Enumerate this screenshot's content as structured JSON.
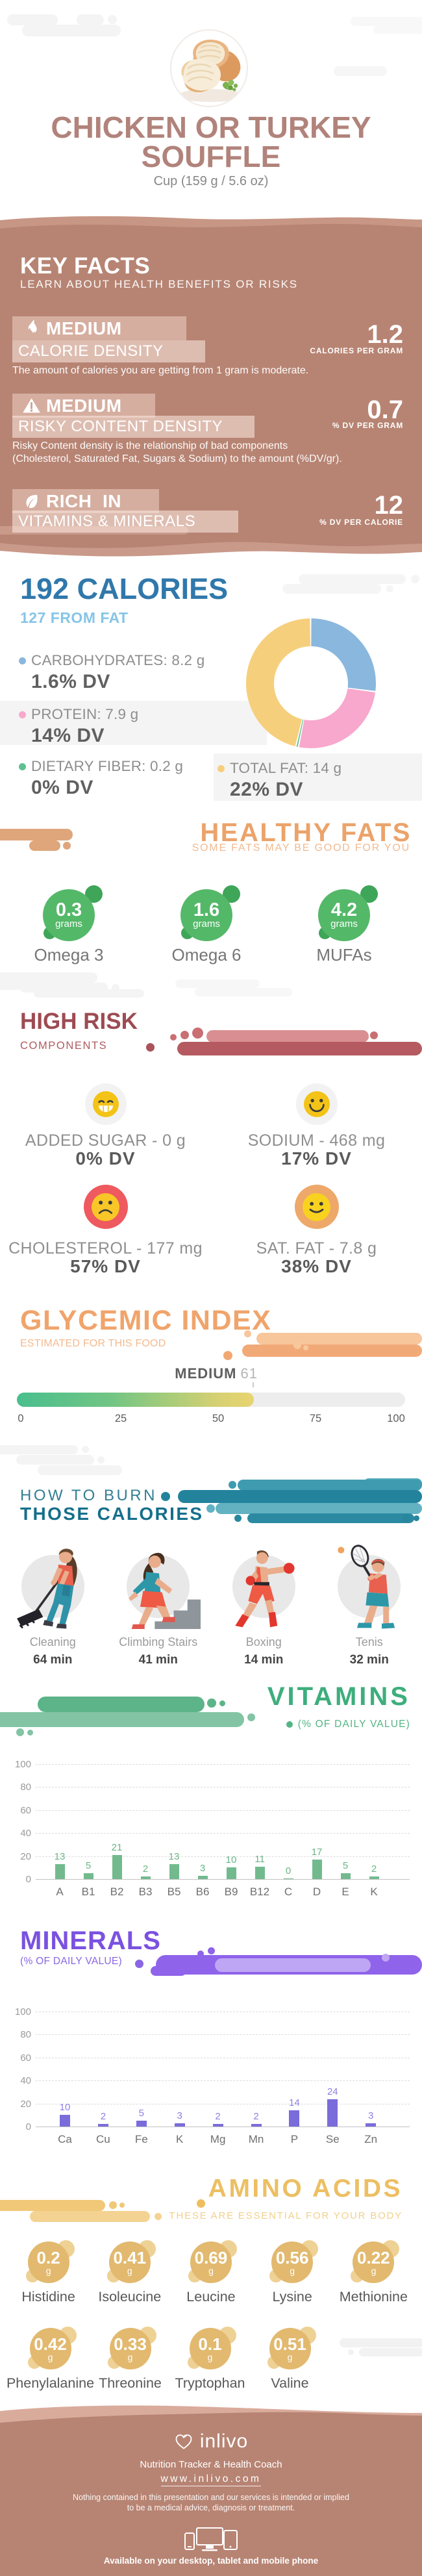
{
  "colors": {
    "rose": "#b78473",
    "rose-light": "#c79684",
    "rose-light-footer": "#d9ab9b",
    "title-color": "#b1837b",
    "blue": "#3078ab",
    "blue-light": "#85c5e8",
    "green-badge": "#54b869",
    "green-badge-sat": "#3fa558",
    "orange": "#eba36a",
    "red-dark": "#9d4b52",
    "red-pill": "#bf6066",
    "teal": "#156f8b",
    "vitamins-green": "#3dae7c",
    "minerals-purple": "#7a52e0",
    "amino-gold": "#ecbf63",
    "cloud-gray": "#f4f4f4"
  },
  "header": {
    "title_line1": "CHICKEN OR TURKEY",
    "title_line2": "SOUFFLE",
    "serving": "Cup (159 g / 5.6 oz)",
    "photo_alt": "chicken-or-turkey-souffle-photo"
  },
  "key_facts": {
    "title": "KEY FACTS",
    "subtitle": "LEARN ABOUT HEALTH BENEFITS OR RISKS",
    "facts": [
      {
        "icon": "flame-icon",
        "level": "MEDIUM",
        "name": "CALORIE DENSITY",
        "value": "1.2",
        "unit": "CALORIES PER GRAM",
        "description": "The amount of calories you are getting from 1 gram is moderate."
      },
      {
        "icon": "warning-icon",
        "level": "MEDIUM",
        "name": "RISKY CONTENT DENSITY",
        "value": "0.7",
        "unit": "% DV PER GRAM",
        "description": "Risky Content density is the relationship of bad components\n(Cholesterol, Saturated Fat, Sugars & Sodium) to the amount (%DV/gr)."
      },
      {
        "icon": "leaf-icon",
        "level": "RICH  IN",
        "name": "VITAMINS & MINERALS",
        "value": "12",
        "unit": "% DV PER CALORIE",
        "description": ""
      }
    ]
  },
  "calories": {
    "title": "192 CALORIES",
    "subtitle": "127 FROM FAT",
    "legend": [
      {
        "label": "CARBOHYDRATES: 8.2 g",
        "dv": "1.6% DV",
        "color": "#8ab7dd"
      },
      {
        "label": "PROTEIN: 7.9 g",
        "dv": "14% DV",
        "color": "#f7a8cc"
      },
      {
        "label": "DIETARY FIBER: 0.2 g",
        "dv": "0% DV",
        "color": "#5fc091"
      },
      {
        "label": "TOTAL FAT: 14 g",
        "dv": "22% DV",
        "color": "#f6cf7d"
      }
    ]
  },
  "healthy_fats": {
    "title": "HEALTHY FATS",
    "subtitle": "SOME FATS MAY BE GOOD FOR YOU",
    "items": [
      {
        "value": "0.3",
        "unit": "grams",
        "label": "Omega 3"
      },
      {
        "value": "1.6",
        "unit": "grams",
        "label": "Omega 6"
      },
      {
        "value": "4.2",
        "unit": "grams",
        "label": "MUFAs"
      }
    ]
  },
  "high_risk": {
    "title": "HIGH RISK",
    "subtitle": "COMPONENTS",
    "items": [
      {
        "label": "ADDED SUGAR - 0 g",
        "dv": "0% DV",
        "mood": "grin",
        "circle": "#f2f2f2",
        "face": "#f3c317"
      },
      {
        "label": "SODIUM - 468 mg",
        "dv": "17% DV",
        "mood": "smile-big",
        "circle": "#f2f2f2",
        "face": "#f3c317"
      },
      {
        "label": "CHOLESTEROL - 177 mg",
        "dv": "57% DV",
        "mood": "frown",
        "circle": "#ee5a5f",
        "face": "#f8c727"
      },
      {
        "label": "SAT. FAT - 7.8 g",
        "dv": "38% DV",
        "mood": "smile",
        "circle": "#eda86a",
        "face": "#f8d21f"
      }
    ]
  },
  "glycemic_index": {
    "title": "GLYCEMIC INDEX",
    "subtitle": "ESTIMATED FOR THIS FOOD",
    "level": "MEDIUM",
    "value": 61,
    "scale": [
      0,
      25,
      50,
      75,
      100
    ]
  },
  "burn": {
    "title_line1": "HOW TO BURN",
    "title_line2": "THOSE CALORIES",
    "activities": [
      {
        "name": "Cleaning",
        "minutes": "64 min",
        "icon": "cleaning-figure"
      },
      {
        "name": "Climbing Stairs",
        "minutes": "41 min",
        "icon": "climbing-stairs-figure"
      },
      {
        "name": "Boxing",
        "minutes": "14 min",
        "icon": "boxing-figure"
      },
      {
        "name": "Tenis",
        "minutes": "32 min",
        "icon": "tennis-figure"
      }
    ]
  },
  "vitamins": {
    "title": "VITAMINS",
    "subtitle": "(% OF DAILY VALUE)"
  },
  "minerals": {
    "title": "MINERALS",
    "subtitle": "(% OF DAILY VALUE)"
  },
  "amino_acids": {
    "title": "AMINO ACIDS",
    "subtitle": "THESE ARE ESSENTIAL FOR YOUR BODY",
    "row1": [
      {
        "value": "0.2",
        "unit": "g",
        "label": "Histidine"
      },
      {
        "value": "0.41",
        "unit": "g",
        "label": "Isoleucine"
      },
      {
        "value": "0.69",
        "unit": "g",
        "label": "Leucine"
      },
      {
        "value": "0.56",
        "unit": "g",
        "label": "Lysine"
      },
      {
        "value": "0.22",
        "unit": "g",
        "label": "Methionine"
      }
    ],
    "row2": [
      {
        "value": "0.42",
        "unit": "g",
        "label": "Phenylalanine"
      },
      {
        "value": "0.33",
        "unit": "g",
        "label": "Threonine"
      },
      {
        "value": "0.1",
        "unit": "g",
        "label": "Tryptophan"
      },
      {
        "value": "0.51",
        "unit": "g",
        "label": "Valine"
      }
    ]
  },
  "footer": {
    "brand": "inlivo",
    "tagline": "Nutrition Tracker & Health Coach",
    "url": "www.inlivo.com",
    "disclaimer_line1": "Nothing contained in this presentation and our services is intended or implied",
    "disclaimer_line2": "to be a medical advice, diagnosis or treatment.",
    "availability": "Available on your desktop, tablet and mobile phone"
  },
  "chart_data": [
    {
      "type": "pie",
      "subtype": "donut",
      "title": "192 CALORIES",
      "subtitle": "127 FROM FAT",
      "unit": "g",
      "labels": [
        "CARBOHYDRATES",
        "PROTEIN",
        "DIETARY FIBER",
        "TOTAL FAT"
      ],
      "values": [
        8.2,
        7.9,
        0.2,
        14
      ],
      "dv_percent": [
        1.6,
        14,
        0,
        22
      ],
      "colors": [
        "#8ab7dd",
        "#f7a8cc",
        "#5fc091",
        "#f6cf7d"
      ],
      "legend_position": "left"
    },
    {
      "type": "gauge",
      "title": "GLYCEMIC INDEX",
      "value": 61,
      "label": "MEDIUM",
      "range": [
        0,
        100
      ],
      "ticks": [
        0,
        25,
        50,
        75,
        100
      ]
    },
    {
      "type": "bar",
      "title": "VITAMINS",
      "ylabel": "% OF DAILY VALUE",
      "categories": [
        "A",
        "B1",
        "B2",
        "B3",
        "B5",
        "B6",
        "B9",
        "B12",
        "C",
        "D",
        "E",
        "K"
      ],
      "values": [
        13,
        5,
        21,
        2,
        13,
        3,
        10,
        11,
        0,
        17,
        5,
        2
      ],
      "ylim": [
        0,
        100
      ],
      "yticks": [
        0,
        20,
        40,
        60,
        80,
        100
      ],
      "bar_color": "#72ba8e",
      "grid": "dashed"
    },
    {
      "type": "bar",
      "title": "MINERALS",
      "ylabel": "% OF DAILY VALUE",
      "categories": [
        "Ca",
        "Cu",
        "Fe",
        "K",
        "Mg",
        "Mn",
        "P",
        "Se",
        "Zn"
      ],
      "values": [
        10,
        2,
        5,
        3,
        2,
        2,
        14,
        24,
        3
      ],
      "ylim": [
        0,
        100
      ],
      "yticks": [
        0,
        20,
        40,
        60,
        80,
        100
      ],
      "bar_color": "#7a6cdb",
      "grid": "dashed"
    }
  ]
}
